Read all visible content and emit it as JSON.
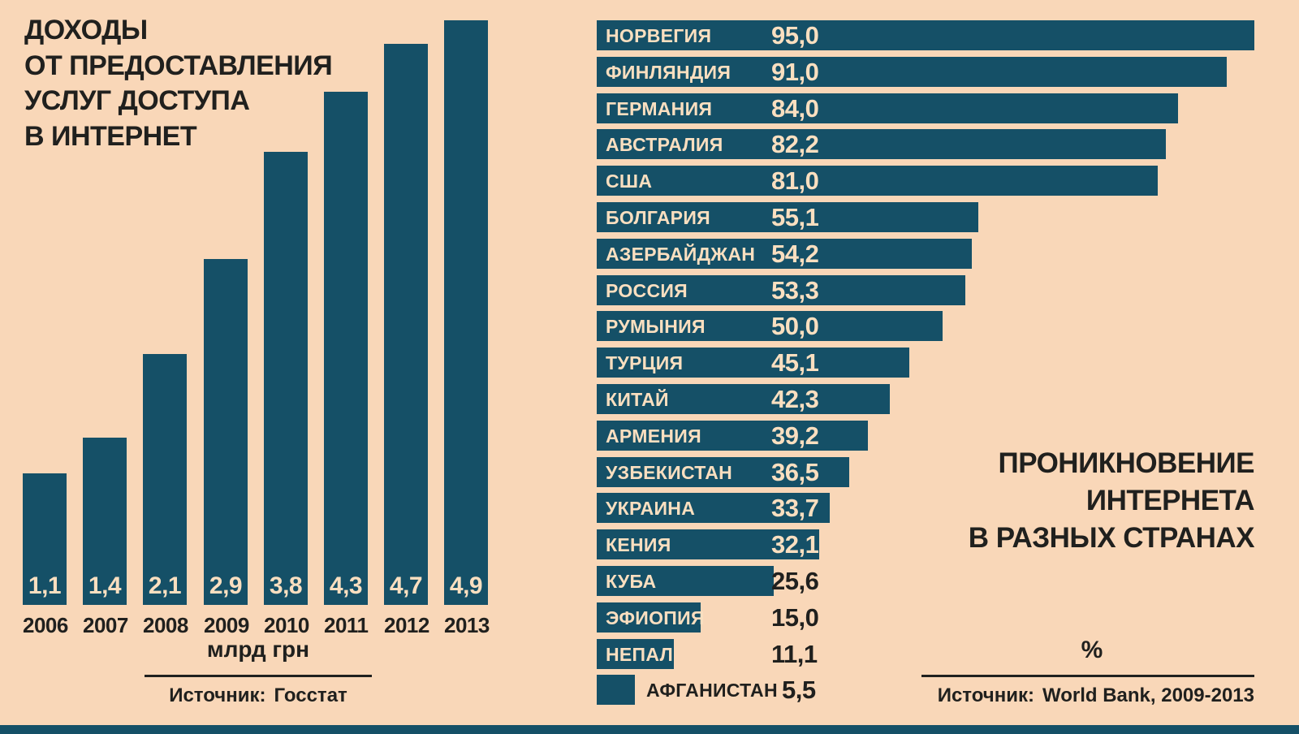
{
  "palette": {
    "background": "#f9d7b8",
    "bar": "#155067",
    "text_dark": "#20201e",
    "text_light": "#fadfc0"
  },
  "left_chart": {
    "title_lines": [
      "ДОХОДЫ",
      "ОТ ПРЕДОСТАВЛЕНИЯ",
      "УСЛУГ ДОСТУПА",
      "В ИНТЕРНЕТ"
    ],
    "unit_label": "млрд грн",
    "source_prefix": "Источник:",
    "source_value": "Госстат"
  },
  "right_chart": {
    "title_lines": [
      "ПРОНИКНОВЕНИЕ",
      "ИНТЕРНЕТА",
      "В РАЗНЫХ СТРАНАХ"
    ],
    "unit_label": "%",
    "source_prefix": "Источник:",
    "source_value": "World Bank, 2009-2013"
  },
  "chart_data": [
    {
      "type": "bar",
      "orientation": "vertical",
      "title": "Доходы от предоставления услуг доступа в интернет",
      "categories": [
        "2006",
        "2007",
        "2008",
        "2009",
        "2010",
        "2011",
        "2012",
        "2013"
      ],
      "values": [
        1.1,
        1.4,
        2.1,
        2.9,
        3.8,
        4.3,
        4.7,
        4.9
      ],
      "value_labels": [
        "1,1",
        "1,4",
        "2,1",
        "2,9",
        "3,8",
        "4,3",
        "4,7",
        "4,9"
      ],
      "ylabel": "млрд грн",
      "ylim": [
        0,
        4.9
      ],
      "grid": false,
      "source": "Госстат"
    },
    {
      "type": "bar",
      "orientation": "horizontal",
      "title": "Проникновение интернета в разных странах",
      "categories": [
        "НОРВЕГИЯ",
        "ФИНЛЯНДИЯ",
        "ГЕРМАНИЯ",
        "АВСТРАЛИЯ",
        "США",
        "БОЛГАРИЯ",
        "АЗЕРБАЙДЖАН",
        "РОССИЯ",
        "РУМЫНИЯ",
        "ТУРЦИЯ",
        "КИТАЙ",
        "АРМЕНИЯ",
        "УЗБЕКИСТАН",
        "УКРАИНА",
        "КЕНИЯ",
        "КУБА",
        "ЭФИОПИЯ",
        "НЕПАЛ",
        "АФГАНИСТАН"
      ],
      "values": [
        95.0,
        91.0,
        84.0,
        82.2,
        81.0,
        55.1,
        54.2,
        53.3,
        50.0,
        45.1,
        42.3,
        39.2,
        36.5,
        33.7,
        32.1,
        25.6,
        15.0,
        11.1,
        5.5
      ],
      "value_labels": [
        "95,0",
        "91,0",
        "84,0",
        "82,2",
        "81,0",
        "55,1",
        "54,2",
        "53,3",
        "50,0",
        "45,1",
        "42,3",
        "39,2",
        "36,5",
        "33,7",
        "32,1",
        "25,6",
        "15,0",
        "11,1",
        "5,5"
      ],
      "xlabel": "%",
      "xlim": [
        0,
        95
      ],
      "grid": false,
      "source": "World Bank, 2009-2013"
    }
  ]
}
